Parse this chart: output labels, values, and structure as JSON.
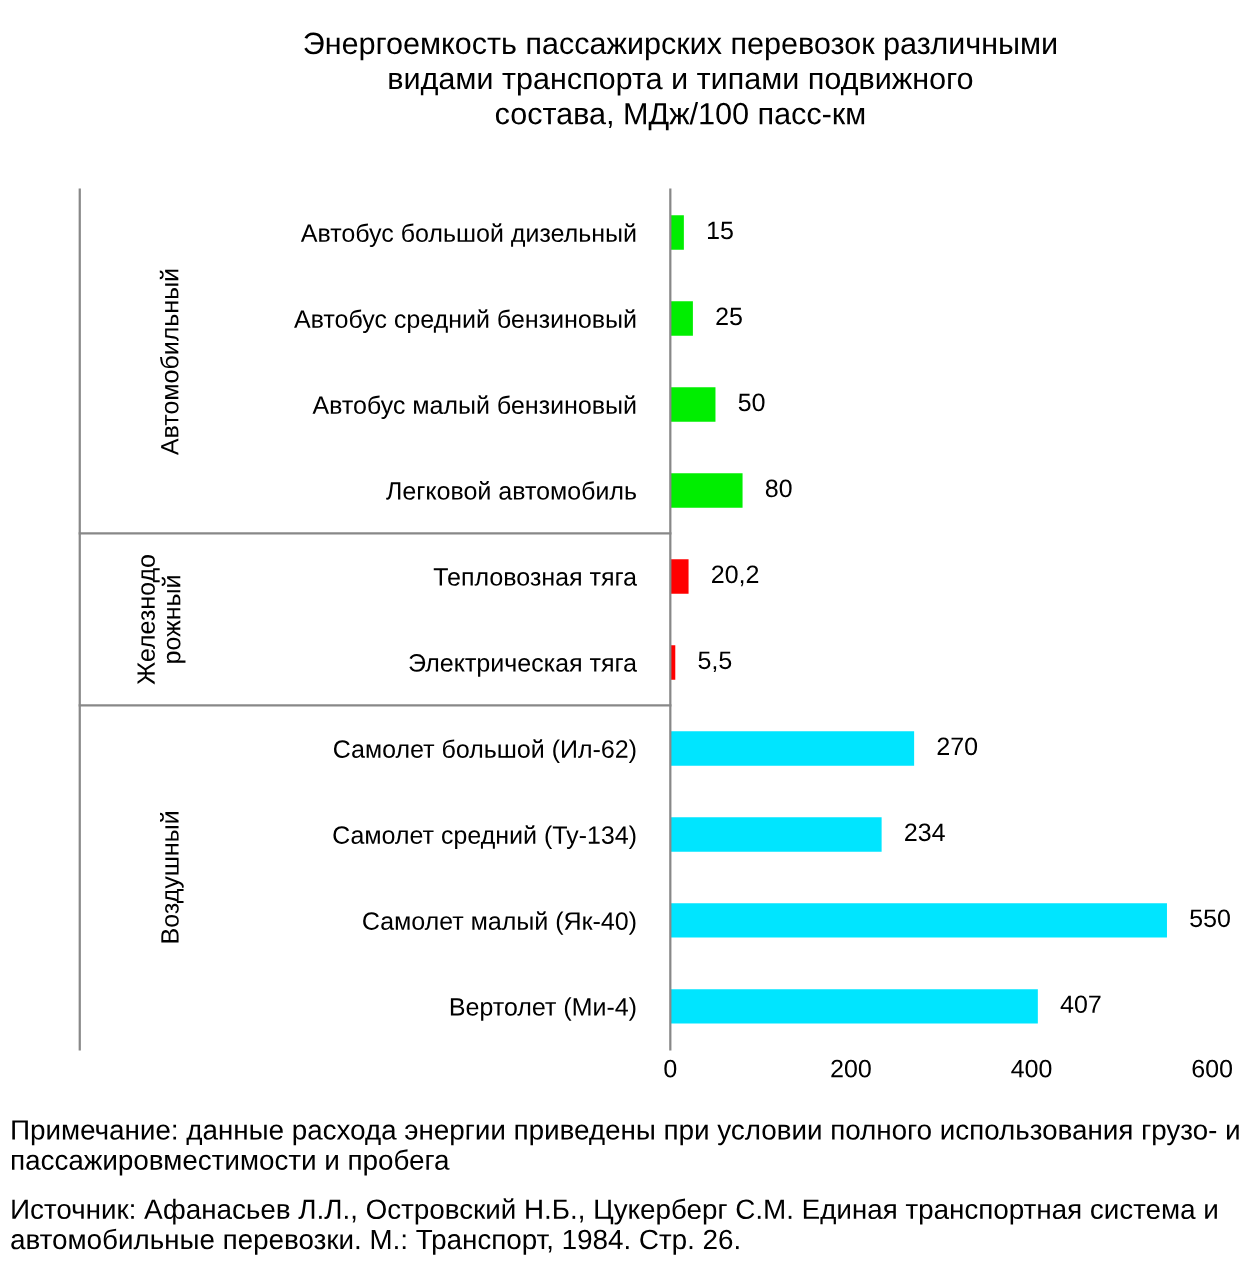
{
  "chart_data": {
    "type": "bar",
    "orientation": "horizontal",
    "title": "Энергоемкость пассажирских перевозок различными\nвидами транспорта и типами подвижного\nсостава, МДж/100 пасс-км",
    "categories": [
      "Автобус большой дизельный",
      "Автобус средний бензиновый",
      "Автобус малый бензиновый",
      "Легковой автомобиль",
      "Тепловозная тяга",
      "Электрическая тяга",
      "Самолет большой (Ил-62)",
      "Самолет средний (Ту-134)",
      "Самолет малый (Як-40)",
      "Вертолет (Ми-4)"
    ],
    "values": [
      15,
      25,
      50,
      80,
      20.2,
      5.5,
      270,
      234,
      550,
      407
    ],
    "colors": [
      "#00ee00",
      "#00ee00",
      "#00ee00",
      "#00ee00",
      "#ff0000",
      "#ff0000",
      "#00e5ff",
      "#00e5ff",
      "#00e5ff",
      "#00e5ff"
    ],
    "value_labels": [
      "15",
      "25",
      "50",
      "80",
      "20,2",
      "5,5",
      "270",
      "234",
      "550",
      "407"
    ],
    "xlim": [
      0,
      600
    ],
    "xticks": [
      0,
      200,
      400,
      600
    ],
    "annotations": [
      "Автомобильный",
      "Железнодо\nрожный",
      "Воздушный",
      "Примечание: данные расхода энергии приведены при условии полного использования грузо- и пассажировместимости и пробега",
      "Источник: Афанасьев Л.Л., Островский Н.Б., Цукерберг С.М. Единая транспортная система и автомобильные перевозки. М.: Транспорт, 1984. Стр. 26."
    ]
  }
}
